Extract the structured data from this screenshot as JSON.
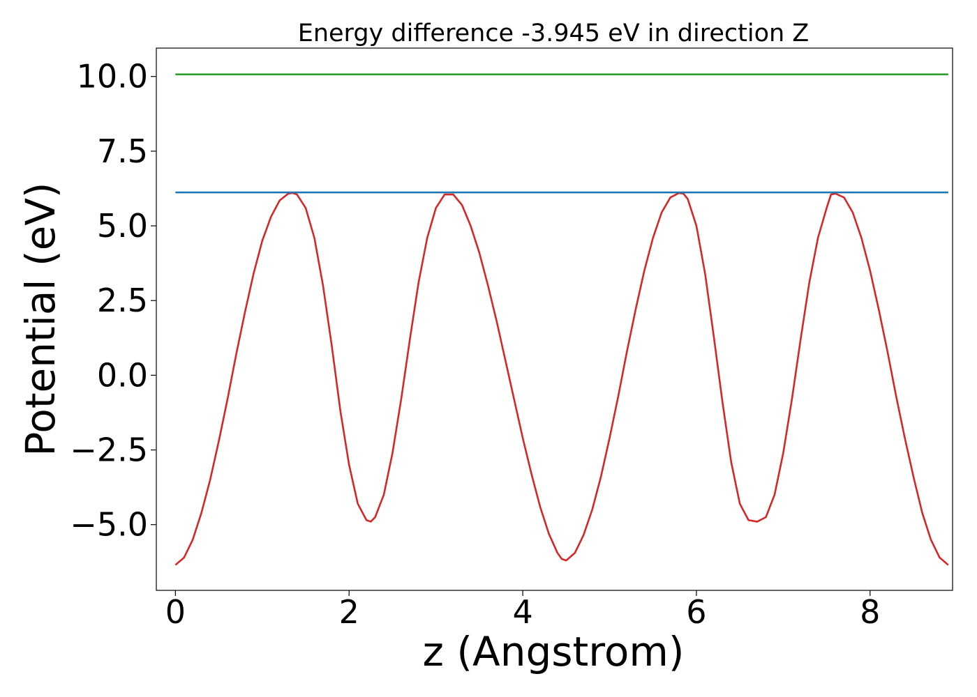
{
  "chart_data": {
    "type": "line",
    "title": "Energy difference -3.945 eV in direction Z",
    "xlabel": "z (Angstrom)",
    "ylabel": "Potential (eV)",
    "xlim": [
      -0.22,
      8.95
    ],
    "ylim": [
      -7.2,
      10.95
    ],
    "x_ticks": [
      {
        "value": 0,
        "label": "0"
      },
      {
        "value": 2,
        "label": "2"
      },
      {
        "value": 4,
        "label": "4"
      },
      {
        "value": 6,
        "label": "6"
      },
      {
        "value": 8,
        "label": "8"
      }
    ],
    "y_ticks": [
      {
        "value": 10.0,
        "label": "10.0"
      },
      {
        "value": 7.5,
        "label": "7.5"
      },
      {
        "value": 5.0,
        "label": "5.0"
      },
      {
        "value": 2.5,
        "label": "2.5"
      },
      {
        "value": 0.0,
        "label": "0.0"
      },
      {
        "value": -2.5,
        "label": "−2.5"
      },
      {
        "value": -5.0,
        "label": "−5.0"
      }
    ],
    "grid": false,
    "legend": "none",
    "series": [
      {
        "color": "#d62728",
        "x": [
          0.0,
          0.1,
          0.2,
          0.3,
          0.4,
          0.5,
          0.6,
          0.7,
          0.8,
          0.9,
          1.0,
          1.1,
          1.2,
          1.3,
          1.35,
          1.4,
          1.5,
          1.6,
          1.7,
          1.8,
          1.9,
          2.0,
          2.1,
          2.2,
          2.25,
          2.3,
          2.4,
          2.5,
          2.6,
          2.7,
          2.8,
          2.9,
          3.0,
          3.1,
          3.2,
          3.3,
          3.4,
          3.5,
          3.6,
          3.7,
          3.8,
          3.9,
          4.0,
          4.1,
          4.2,
          4.3,
          4.4,
          4.45,
          4.5,
          4.6,
          4.7,
          4.8,
          4.9,
          5.0,
          5.1,
          5.2,
          5.3,
          5.4,
          5.5,
          5.6,
          5.7,
          5.8,
          5.85,
          5.9,
          6.0,
          6.1,
          6.2,
          6.3,
          6.4,
          6.5,
          6.6,
          6.7,
          6.8,
          6.9,
          7.0,
          7.1,
          7.2,
          7.3,
          7.4,
          7.5,
          7.55,
          7.6,
          7.7,
          7.8,
          7.9,
          8.0,
          8.1,
          8.2,
          8.3,
          8.4,
          8.5,
          8.6,
          8.7,
          8.8,
          8.9
        ],
        "y": [
          -6.35,
          -6.1,
          -5.5,
          -4.6,
          -3.5,
          -2.2,
          -0.8,
          0.7,
          2.1,
          3.4,
          4.5,
          5.3,
          5.85,
          6.08,
          6.1,
          6.05,
          5.6,
          4.6,
          3.0,
          1.0,
          -1.2,
          -3.0,
          -4.3,
          -4.85,
          -4.9,
          -4.75,
          -4.0,
          -2.6,
          -0.8,
          1.2,
          3.1,
          4.6,
          5.6,
          6.05,
          6.05,
          5.7,
          5.0,
          4.1,
          3.0,
          1.8,
          0.5,
          -0.8,
          -2.1,
          -3.3,
          -4.4,
          -5.3,
          -5.95,
          -6.15,
          -6.2,
          -5.95,
          -5.35,
          -4.5,
          -3.4,
          -2.1,
          -0.7,
          0.8,
          2.2,
          3.5,
          4.6,
          5.45,
          5.95,
          6.1,
          6.08,
          5.9,
          5.0,
          3.4,
          1.3,
          -0.9,
          -2.9,
          -4.3,
          -4.85,
          -4.9,
          -4.75,
          -4.0,
          -2.6,
          -0.8,
          1.2,
          3.1,
          4.6,
          5.6,
          6.05,
          6.08,
          5.95,
          5.45,
          4.6,
          3.5,
          2.2,
          0.8,
          -0.7,
          -2.1,
          -3.4,
          -4.6,
          -5.5,
          -6.1,
          -6.35
        ]
      },
      {
        "color": "#1f77b4",
        "x": [
          0.0,
          8.9
        ],
        "y": [
          6.12,
          6.12
        ]
      },
      {
        "color": "#2ca02c",
        "x": [
          0.0,
          8.9
        ],
        "y": [
          10.07,
          10.07
        ]
      }
    ]
  }
}
